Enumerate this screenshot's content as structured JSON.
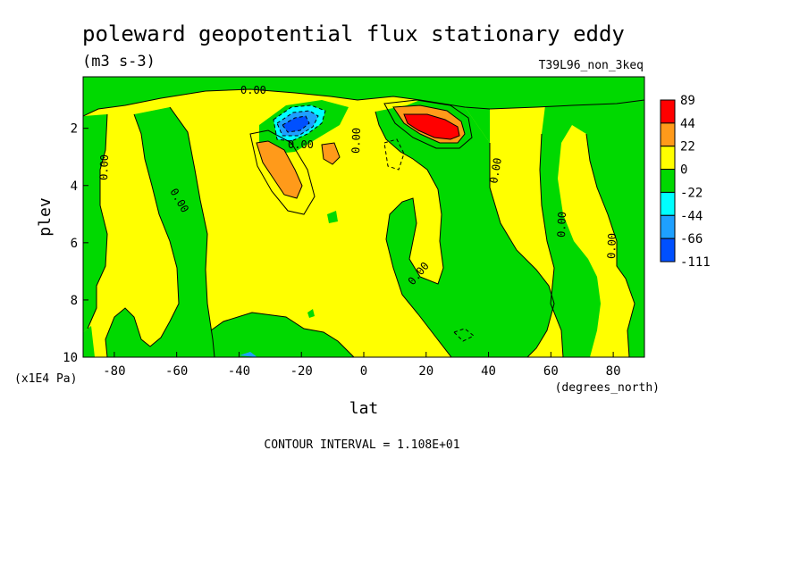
{
  "chart_data": {
    "type": "heatmap",
    "title": "poleward geopotential flux stationary eddy",
    "units": "(m3 s-3)",
    "dataset": "T39L96_non_3keq",
    "xlabel": "lat",
    "x_units": "(degrees_north)",
    "ylabel": "plev",
    "y_units": "(x1E4 Pa)",
    "xlim": [
      -90,
      90
    ],
    "ylim": [
      10,
      0.2
    ],
    "x_ticks": [
      {
        "value": -80,
        "label": "-80"
      },
      {
        "value": -60,
        "label": "-60"
      },
      {
        "value": -40,
        "label": "-40"
      },
      {
        "value": -20,
        "label": "-20"
      },
      {
        "value": 0,
        "label": "0"
      },
      {
        "value": 20,
        "label": "20"
      },
      {
        "value": 40,
        "label": "40"
      },
      {
        "value": 60,
        "label": "60"
      },
      {
        "value": 80,
        "label": "80"
      }
    ],
    "y_ticks": [
      {
        "value": 2,
        "label": "2"
      },
      {
        "value": 4,
        "label": "4"
      },
      {
        "value": 6,
        "label": "6"
      },
      {
        "value": 8,
        "label": "8"
      },
      {
        "value": 10,
        "label": "10"
      }
    ],
    "contour_interval": "CONTOUR INTERVAL = 1.108E+01",
    "colorbar": {
      "labels": [
        "89",
        "44",
        "22",
        "0",
        "-22",
        "-44",
        "-66",
        "-111"
      ],
      "colors": [
        "#ff0000",
        "#ff9a1a",
        "#ffff00",
        "#00d900",
        "#00ffff",
        "#1ea0ff",
        "#0050ff"
      ]
    },
    "contour_labels": [
      "0.00",
      "0.00",
      "0.00",
      "0.00",
      "0.00",
      "0.00",
      "0.00",
      "0.00",
      "0.00"
    ],
    "features": [
      {
        "name": "positive maximum",
        "lat": 22,
        "plev": 1.9,
        "level": "44 to 89"
      },
      {
        "name": "negative minimum",
        "lat": -22,
        "plev": 1.9,
        "level": "-111 to -66"
      },
      {
        "name": "secondary positive",
        "lat": -28,
        "plev": 3.5,
        "level": "22 to 44"
      }
    ]
  }
}
